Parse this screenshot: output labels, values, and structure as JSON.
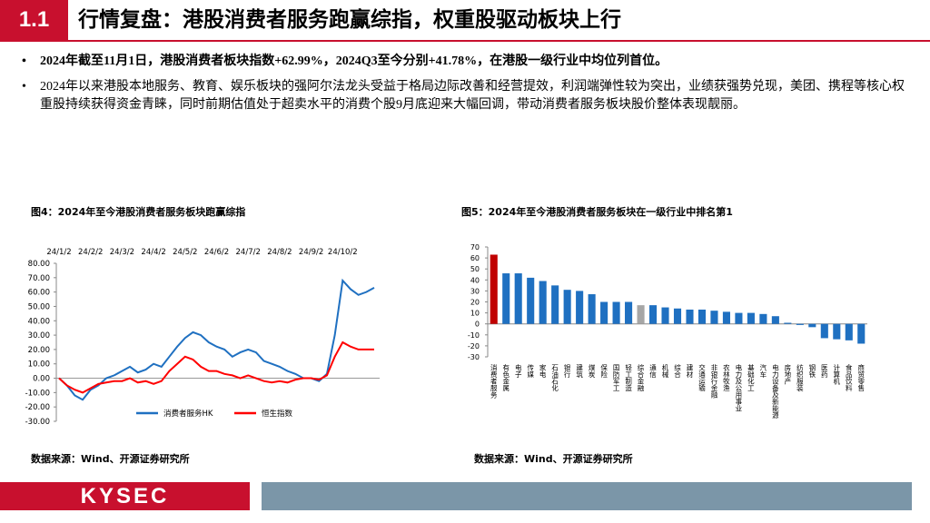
{
  "header": {
    "number": "1.1",
    "title": "行情复盘：港股消费者服务跑赢综指，权重股驱动板块上行"
  },
  "bullets": [
    "2024年截至11月1日，港股消费者板块指数+62.99%，2024Q3至今分别+41.78%，在港股一级行业中均位列首位。",
    "2024年以来港股本地服务、教育、娱乐板块的强阿尔法龙头受益于格局边际改善和经营提效，利润端弹性较为突出，业绩获强势兑现，美团、携程等核心权重股持续获得资金青睐，同时前期估值处于超卖水平的消费个股9月底迎来大幅回调，带动消费者服务板块股价整体表现靓丽。"
  ],
  "chart_data": [
    {
      "type": "line",
      "title": "图4：2024年至今港股消费者服务板块跑赢综指",
      "source": "数据来源：Wind、开源证券研究所",
      "categories": [
        "24/1/2",
        null,
        null,
        null,
        "24/2/2",
        null,
        null,
        null,
        "24/3/2",
        null,
        null,
        null,
        "24/4/2",
        null,
        null,
        null,
        "24/5/2",
        null,
        null,
        null,
        "24/6/2",
        null,
        null,
        null,
        "24/7/2",
        null,
        null,
        null,
        "24/8/2",
        null,
        null,
        null,
        "24/9/2",
        null,
        null,
        null,
        "24/10/2",
        null,
        null,
        null,
        null
      ],
      "series": [
        {
          "name": "消费者服务HK",
          "color": "#1f70c1",
          "values": [
            0,
            -5,
            -12,
            -15,
            -8,
            -5,
            0,
            2,
            5,
            8,
            4,
            6,
            10,
            8,
            15,
            22,
            28,
            32,
            30,
            25,
            22,
            20,
            15,
            18,
            20,
            18,
            12,
            10,
            8,
            5,
            3,
            0,
            0,
            -2,
            3,
            30,
            68,
            62,
            58,
            60,
            62.99
          ]
        },
        {
          "name": "恒生指数",
          "color": "#ff0000",
          "values": [
            0,
            -5,
            -8,
            -10,
            -7,
            -4,
            -3,
            -2,
            -2,
            0,
            -3,
            -2,
            -4,
            -2,
            5,
            10,
            15,
            13,
            8,
            5,
            5,
            3,
            2,
            0,
            2,
            0,
            -2,
            -3,
            -2,
            -3,
            -1,
            0,
            0,
            -1,
            2,
            15,
            25,
            22,
            20,
            20,
            20
          ]
        }
      ],
      "ylim": [
        -30,
        80
      ],
      "yticks": [
        {
          "value": -30,
          "label": "-30.00"
        },
        {
          "value": -20,
          "label": "-20.00"
        },
        {
          "value": -10,
          "label": "-10.00"
        },
        {
          "value": 0,
          "label": "0.00"
        },
        {
          "value": 10,
          "label": "10.00"
        },
        {
          "value": 20,
          "label": "20.00"
        },
        {
          "value": 30,
          "label": "30.00"
        },
        {
          "value": 40,
          "label": "40.00"
        },
        {
          "value": 50,
          "label": "50.00"
        },
        {
          "value": 60,
          "label": "60.00"
        },
        {
          "value": 70,
          "label": "70.00"
        },
        {
          "value": 80,
          "label": "80.00"
        }
      ]
    },
    {
      "type": "bar",
      "title": "图5：2024年至今港股消费者服务板块在一级行业中排名第1",
      "source": "数据来源：Wind、开源证券研究所",
      "categories": [
        "消费者服务",
        "有色金属",
        "电子",
        "传媒",
        "家电",
        "石油石化",
        "银行",
        "建筑",
        "煤炭",
        "保险",
        "国防军工",
        "轻工制造",
        "综合金融",
        "通信",
        "机械",
        "综合",
        "建材",
        "交通运输",
        "非银行金融",
        "农林牧渔",
        "电力及公用事业",
        "基础化工",
        "汽车",
        "电力设备及新能源",
        "房地产",
        "纺织服装",
        "钢铁",
        "医药",
        "计算机",
        "食品饮料",
        "商贸零售"
      ],
      "values": [
        63,
        46,
        46,
        42,
        39,
        35,
        31,
        30,
        27,
        20,
        20,
        20,
        17,
        17,
        15,
        14,
        13,
        13,
        12,
        11,
        10,
        10,
        9,
        7,
        1,
        -1,
        -3,
        -13,
        -14,
        -15,
        -18
      ],
      "colors": [
        "#c00000",
        "#1f70c1",
        "#1f70c1",
        "#1f70c1",
        "#1f70c1",
        "#1f70c1",
        "#1f70c1",
        "#1f70c1",
        "#1f70c1",
        "#1f70c1",
        "#1f70c1",
        "#1f70c1",
        "#a6a6a6",
        "#1f70c1",
        "#1f70c1",
        "#1f70c1",
        "#1f70c1",
        "#1f70c1",
        "#1f70c1",
        "#1f70c1",
        "#1f70c1",
        "#1f70c1",
        "#1f70c1",
        "#1f70c1",
        "#1f70c1",
        "#1f70c1",
        "#1f70c1",
        "#1f70c1",
        "#1f70c1",
        "#1f70c1",
        "#1f70c1"
      ],
      "ylim": [
        -30,
        70
      ],
      "yticks": [
        -30,
        -20,
        -10,
        0,
        10,
        20,
        30,
        40,
        50,
        60,
        70
      ]
    }
  ],
  "footer": {
    "logo": "KYSEC"
  }
}
